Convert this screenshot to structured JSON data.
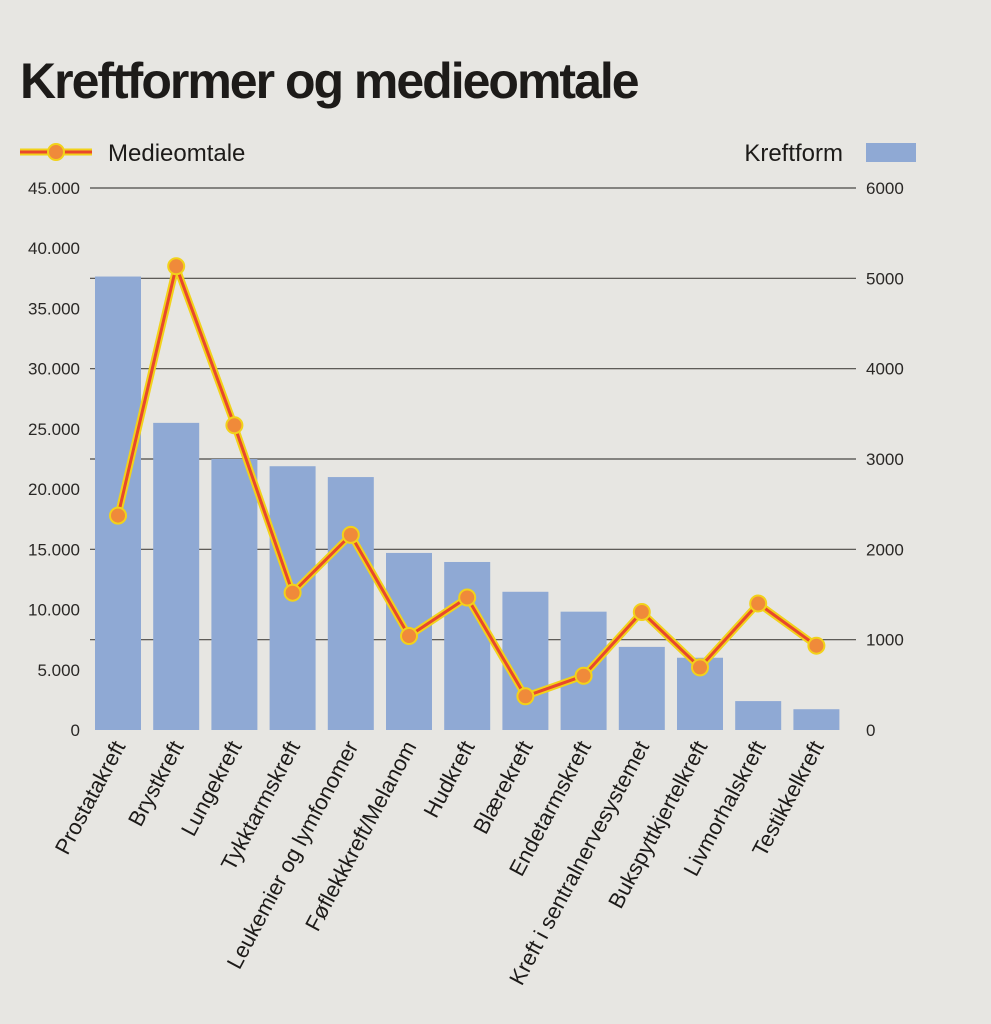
{
  "chart_data": {
    "type": "bar",
    "title": "Kreftformer og medieomtale",
    "categories": [
      "Prostatakreft",
      "Brystkreft",
      "Lungekreft",
      "Tykktarmskreft",
      "Leukemier og lymfonomer",
      "Føflekkkreft/Melanom",
      "Hudkreft",
      "Blærekreft",
      "Endetarmskreft",
      "Kreft i sentralnervesystemet",
      "Bukspyttkjertelkreft",
      "Livmorhalskreft",
      "Testikkelkreft"
    ],
    "series": [
      {
        "name": "Kreftform",
        "type": "bar",
        "axis": "right",
        "values": [
          5020,
          3400,
          3000,
          2920,
          2800,
          1960,
          1860,
          1530,
          1310,
          920,
          800,
          320,
          230
        ]
      },
      {
        "name": "Medieomtale",
        "type": "line",
        "axis": "left",
        "values": [
          17800,
          38500,
          25300,
          11400,
          16200,
          7800,
          11000,
          2800,
          4500,
          9800,
          5200,
          10500,
          7000
        ]
      }
    ],
    "y_left": {
      "lim": [
        0,
        45000
      ],
      "ticks": [
        "0",
        "5.000",
        "10.000",
        "15.000",
        "20.000",
        "25.000",
        "30.000",
        "35.000",
        "40.000",
        "45.000"
      ]
    },
    "y_right": {
      "lim": [
        0,
        6000
      ],
      "ticks": [
        "0",
        "1000",
        "2000",
        "3000",
        "4000",
        "5000",
        "6000"
      ]
    },
    "grid": true,
    "legend": {
      "left_label": "Medieomtale",
      "right_label": "Kreftform",
      "placement": "top"
    },
    "colors": {
      "bar": "#8fa9d4",
      "line": "#e8482c",
      "line_glow": "#f2d21a",
      "marker": "#f08a3a",
      "grid": "#4a4845",
      "text": "#1d1b19"
    }
  }
}
